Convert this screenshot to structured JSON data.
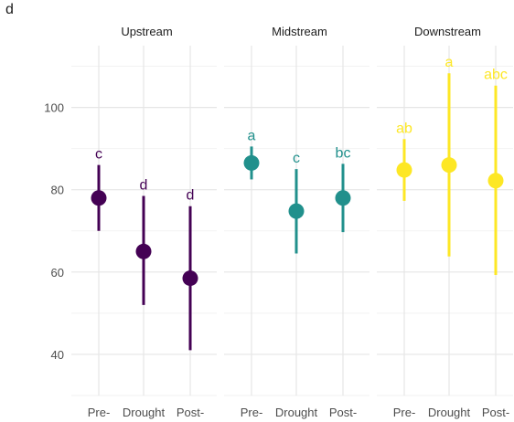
{
  "panel_label": "d",
  "chart_data": {
    "type": "scatter",
    "chart_style": "point-range (mean with error bars), faceted",
    "ylim": [
      30,
      115
    ],
    "y_ticks": [
      40,
      60,
      80,
      100
    ],
    "grid": true,
    "categories": [
      "Pre-",
      "Drought",
      "Post-"
    ],
    "facets": [
      {
        "title": "Upstream",
        "color": "#440154",
        "points": [
          {
            "x": "Pre-",
            "y": 78,
            "low": 70,
            "high": 86,
            "label": "c"
          },
          {
            "x": "Drought",
            "y": 65,
            "low": 52,
            "high": 78.5,
            "label": "d"
          },
          {
            "x": "Post-",
            "y": 58.5,
            "low": 41,
            "high": 76,
            "label": "d"
          }
        ]
      },
      {
        "title": "Midstream",
        "color": "#21908C",
        "points": [
          {
            "x": "Pre-",
            "y": 86.5,
            "low": 82.5,
            "high": 90.5,
            "label": "a"
          },
          {
            "x": "Drought",
            "y": 74.8,
            "low": 64.5,
            "high": 85,
            "label": "c"
          },
          {
            "x": "Post-",
            "y": 78,
            "low": 69.7,
            "high": 86.3,
            "label": "bc"
          }
        ]
      },
      {
        "title": "Downstream",
        "color": "#FDE725",
        "points": [
          {
            "x": "Pre-",
            "y": 84.8,
            "low": 77.3,
            "high": 92.3,
            "label": "ab"
          },
          {
            "x": "Drought",
            "y": 86,
            "low": 63.8,
            "high": 108.3,
            "label": "a"
          },
          {
            "x": "Post-",
            "y": 82.2,
            "low": 59.3,
            "high": 105.3,
            "label": "abc"
          }
        ]
      }
    ]
  }
}
